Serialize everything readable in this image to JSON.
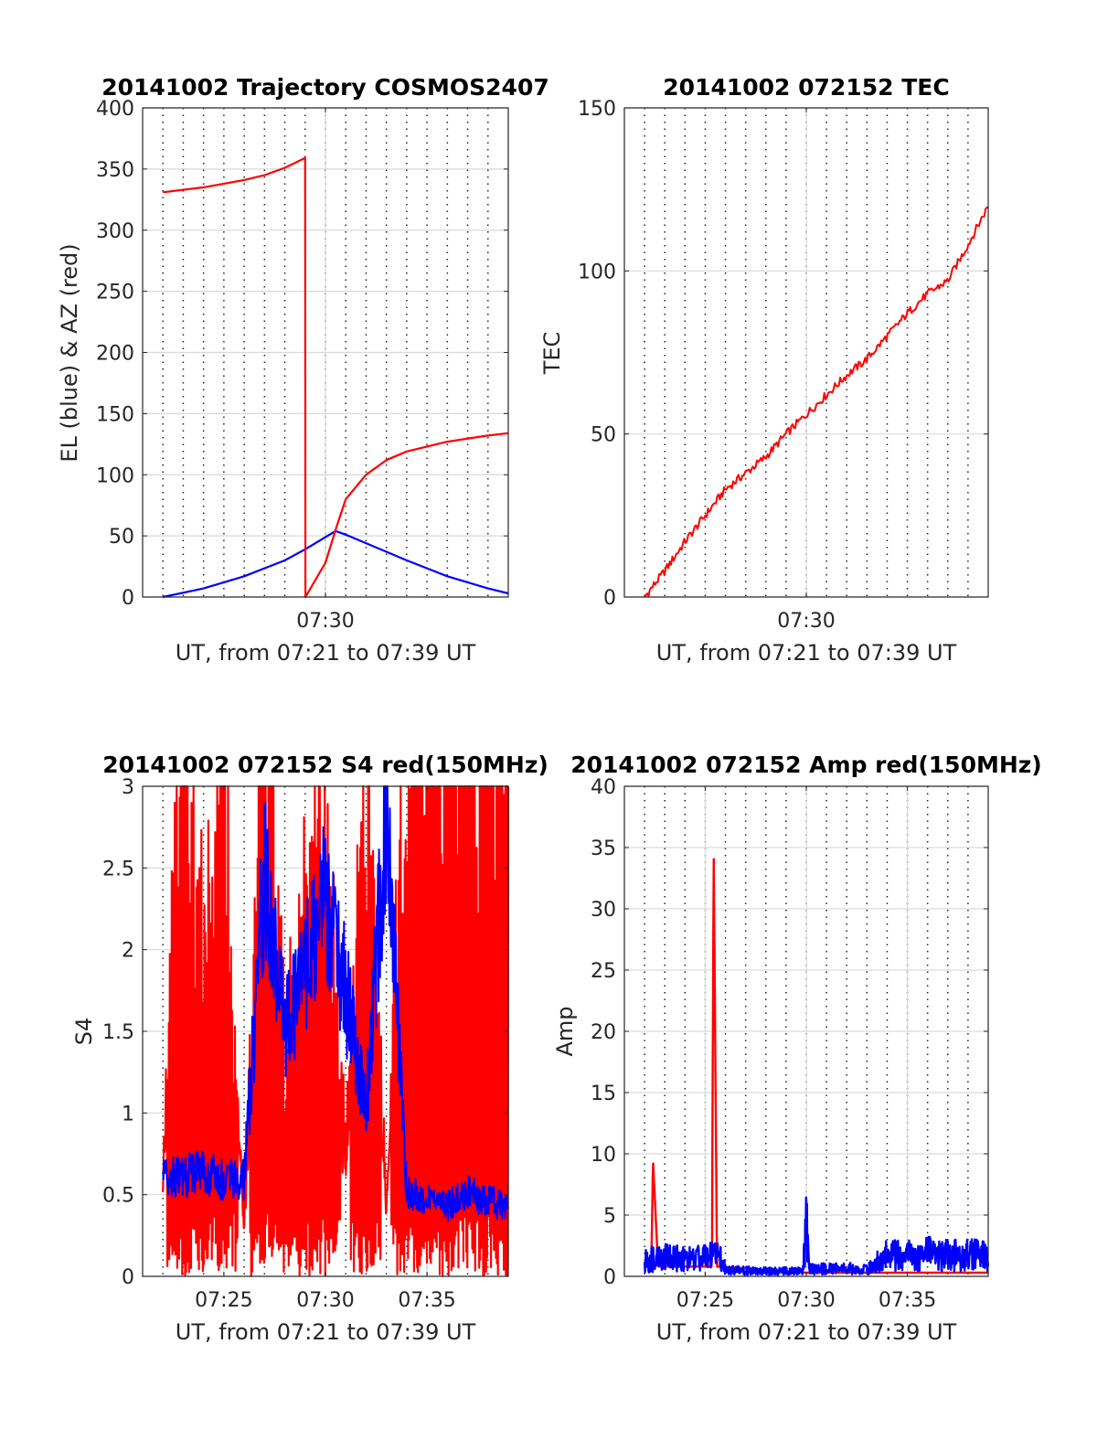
{
  "chart_data": [
    {
      "type": "line",
      "title": "20141002 Trajectory COSMOS2407",
      "xlabel": "UT, from 07:21 to 07:39 UT",
      "ylabel": "EL (blue) & AZ (red)",
      "xlim": [
        "07:21",
        "07:39"
      ],
      "ylim": [
        0,
        400
      ],
      "xticks": [
        "07:30"
      ],
      "yticks": [
        0,
        50,
        100,
        150,
        200,
        250,
        300,
        350,
        400
      ],
      "grid": true,
      "series": [
        {
          "color": "#0000ff",
          "x": [
            "07:22",
            "07:24",
            "07:26",
            "07:28",
            "07:29",
            "07:30",
            "07:30:30",
            "07:31",
            "07:32",
            "07:34",
            "07:36",
            "07:38",
            "07:39"
          ],
          "values": [
            0,
            7,
            17,
            30,
            39,
            49,
            54,
            51,
            44,
            30,
            17,
            7,
            3
          ]
        },
        {
          "color": "#ff0000",
          "x": [
            "07:22",
            "07:24",
            "07:26",
            "07:27",
            "07:28",
            "07:29",
            "07:29:01",
            "07:30",
            "07:30:30",
            "07:31",
            "07:32",
            "07:33",
            "07:34",
            "07:36",
            "07:38",
            "07:39"
          ],
          "values": [
            331,
            335,
            341,
            345,
            351,
            359,
            0,
            28,
            55,
            80,
            100,
            112,
            119,
            127,
            132,
            134
          ]
        }
      ]
    },
    {
      "type": "line",
      "title": "20141002 072152 TEC",
      "xlabel": "UT, from 07:21 to 07:39 UT",
      "ylabel": "TEC",
      "xlim": [
        "07:21",
        "07:39"
      ],
      "ylim": [
        0,
        150
      ],
      "xticks": [
        "07:30"
      ],
      "yticks": [
        0,
        50,
        100,
        150
      ],
      "grid": true,
      "series": [
        {
          "color": "#ff0000",
          "x": [
            "07:22",
            "07:23",
            "07:24",
            "07:25",
            "07:26",
            "07:27",
            "07:28",
            "07:29",
            "07:30",
            "07:31",
            "07:32",
            "07:33",
            "07:34",
            "07:35",
            "07:36",
            "07:37",
            "07:38",
            "07:39"
          ],
          "values": [
            0,
            8,
            17,
            25,
            33,
            38,
            43,
            50,
            56,
            62,
            68,
            73,
            80,
            87,
            93,
            97,
            108,
            120
          ]
        }
      ]
    },
    {
      "type": "line",
      "title": "20141002 072152 S4 red(150MHz)",
      "xlabel": "UT, from 07:21 to 07:39 UT",
      "ylabel": "S4",
      "xlim": [
        "07:21",
        "07:39"
      ],
      "ylim": [
        0,
        3
      ],
      "xticks": [
        "07:25",
        "07:30",
        "07:35"
      ],
      "yticks": [
        0,
        0.5,
        1,
        1.5,
        2,
        2.5,
        3
      ],
      "grid": true,
      "series": [
        {
          "color": "#ff0000",
          "x": [
            "07:22",
            "07:23",
            "07:24",
            "07:25",
            "07:26",
            "07:27",
            "07:28",
            "07:29",
            "07:30",
            "07:31",
            "07:32",
            "07:33",
            "07:34",
            "07:35",
            "07:36",
            "07:37",
            "07:38",
            "07:39"
          ],
          "values": [
            0.6,
            2.8,
            1.6,
            2.5,
            0.3,
            2.9,
            1.1,
            1.9,
            2.2,
            0.6,
            2.5,
            0.4,
            3,
            3,
            3,
            3,
            3,
            3
          ]
        },
        {
          "color": "#0000ff",
          "x": [
            "07:22",
            "07:23",
            "07:24",
            "07:25",
            "07:26",
            "07:27",
            "07:28",
            "07:29",
            "07:30",
            "07:31",
            "07:32",
            "07:33",
            "07:34",
            "07:35",
            "07:36",
            "07:37",
            "07:38",
            "07:39"
          ],
          "values": [
            0.6,
            0.6,
            0.62,
            0.58,
            0.58,
            2.4,
            1.5,
            1.8,
            2.3,
            1.7,
            1.0,
            2.8,
            0.5,
            0.45,
            0.42,
            0.5,
            0.45,
            0.42
          ]
        }
      ]
    },
    {
      "type": "line",
      "title": "20141002 072152 Amp red(150MHz)",
      "xlabel": "UT, from 07:21 to 07:39 UT",
      "ylabel": "Amp",
      "xlim": [
        "07:21",
        "07:39"
      ],
      "ylim": [
        0,
        40
      ],
      "xticks": [
        "07:25",
        "07:30",
        "07:35"
      ],
      "yticks": [
        0,
        5,
        10,
        15,
        20,
        25,
        30,
        35,
        40
      ],
      "grid": true,
      "series": [
        {
          "color": "#ff0000",
          "x": [
            "07:22",
            "07:22:20",
            "07:22:25",
            "07:22:40",
            "07:25",
            "07:25:20",
            "07:25:25",
            "07:25:35",
            "07:30",
            "07:35",
            "07:39"
          ],
          "values": [
            0.8,
            0.8,
            9.5,
            0.8,
            0.8,
            0.8,
            35,
            0.8,
            0.3,
            0.3,
            0.3
          ]
        },
        {
          "color": "#0000ff",
          "x": [
            "07:22",
            "07:23",
            "07:24",
            "07:25",
            "07:25:50",
            "07:26",
            "07:28",
            "07:29:50",
            "07:30",
            "07:30:10",
            "07:32",
            "07:33",
            "07:34",
            "07:35",
            "07:36",
            "07:37",
            "07:38",
            "07:39"
          ],
          "values": [
            1.5,
            1.8,
            1.6,
            1.9,
            2.0,
            0.6,
            0.5,
            0.5,
            5.0,
            0.7,
            0.8,
            0.6,
            2.1,
            2.0,
            2.2,
            2.0,
            2.1,
            2.0
          ]
        }
      ]
    }
  ]
}
